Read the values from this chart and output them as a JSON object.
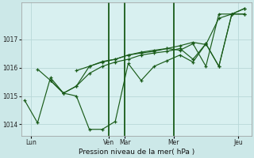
{
  "xlabel": "Pression niveau de la mer( hPa )",
  "background_color": "#cce8e8",
  "plot_bg_color": "#d8f0f0",
  "grid_color": "#b8d8d8",
  "line_color": "#1a5c1a",
  "ylim": [
    1013.6,
    1018.3
  ],
  "yticks": [
    1014,
    1015,
    1016,
    1017
  ],
  "figsize": [
    3.2,
    2.0
  ],
  "dpi": 100,
  "series": [
    {
      "x": [
        0,
        2,
        4,
        6,
        8,
        10,
        12,
        14,
        16,
        18,
        20,
        22,
        24,
        26,
        28,
        30,
        32,
        34
      ],
      "y": [
        1014.85,
        1014.05,
        1015.65,
        1015.1,
        1015.0,
        1013.82,
        1013.82,
        1014.1,
        1016.15,
        1015.55,
        1016.05,
        1016.25,
        1016.45,
        1016.2,
        1016.85,
        1016.05,
        1017.9,
        1017.9
      ]
    },
    {
      "x": [
        2,
        4,
        6,
        8,
        10,
        12,
        14,
        16,
        18,
        20,
        22,
        24,
        26,
        28,
        30,
        32,
        34
      ],
      "y": [
        1015.95,
        1015.55,
        1015.1,
        1015.35,
        1015.8,
        1016.05,
        1016.2,
        1016.3,
        1016.45,
        1016.52,
        1016.58,
        1016.68,
        1016.3,
        1016.85,
        1016.05,
        1017.9,
        1017.9
      ]
    },
    {
      "x": [
        4,
        6,
        8,
        10,
        12,
        14,
        16,
        18,
        20,
        22,
        24,
        26,
        28,
        30,
        32,
        34
      ],
      "y": [
        1015.55,
        1015.1,
        1015.35,
        1016.05,
        1016.2,
        1016.3,
        1016.45,
        1016.52,
        1016.58,
        1016.68,
        1016.62,
        1016.85,
        1016.05,
        1017.9,
        1017.9,
        1018.1
      ]
    },
    {
      "x": [
        8,
        10,
        12,
        14,
        16,
        18,
        20,
        22,
        24,
        26,
        28,
        30,
        32,
        34
      ],
      "y": [
        1015.9,
        1016.05,
        1016.22,
        1016.3,
        1016.45,
        1016.55,
        1016.62,
        1016.68,
        1016.78,
        1016.9,
        1016.82,
        1017.75,
        1017.9,
        1018.1
      ]
    }
  ],
  "xlim": [
    -0.5,
    35.0
  ],
  "day_vlines_x": [
    13.0,
    15.5,
    23.0
  ],
  "xtick_positions": [
    1.0,
    13.0,
    15.5,
    23.0,
    33.0
  ],
  "xtick_labels": [
    "Lun",
    "Ven",
    "Mar",
    "Mer",
    "Jeu"
  ]
}
